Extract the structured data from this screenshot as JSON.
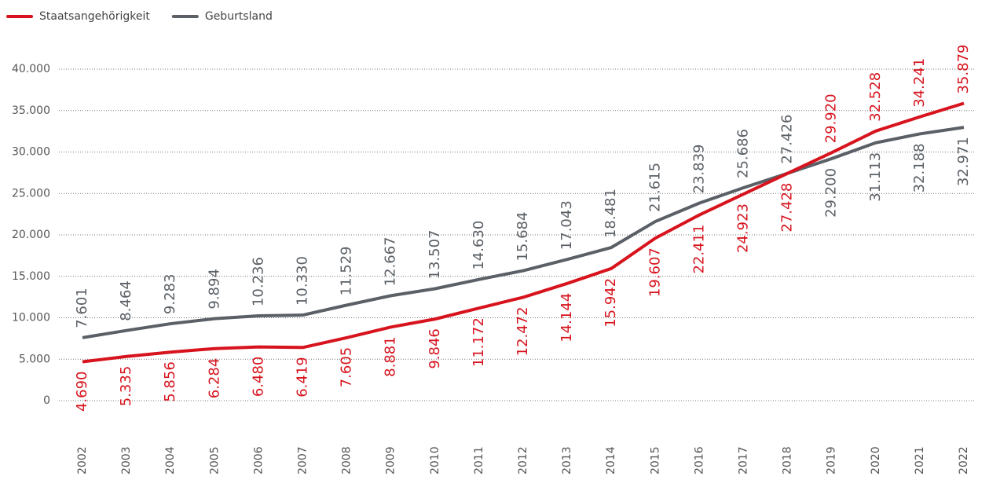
{
  "chart_data": {
    "type": "line",
    "categories": [
      "2002",
      "2003",
      "2004",
      "2005",
      "2006",
      "2007",
      "2008",
      "2009",
      "2010",
      "2011",
      "2012",
      "2013",
      "2014",
      "2015",
      "2016",
      "2017",
      "2018",
      "2019",
      "2020",
      "2021",
      "2022"
    ],
    "series": [
      {
        "name": "Staatsangehörigkeit",
        "color": "#d7141e",
        "values": [
          4690,
          5335,
          5856,
          6284,
          6480,
          6419,
          7605,
          8881,
          9846,
          11172,
          12472,
          14144,
          15942,
          19607,
          22411,
          24923,
          27428,
          29920,
          32528,
          34241,
          35879
        ],
        "value_labels": [
          "4.690",
          "5.335",
          "5.856",
          "6.284",
          "6.480",
          "6.419",
          "7.605",
          "8.881",
          "9.846",
          "11.172",
          "12.472",
          "14.144",
          "15.942",
          "19.607",
          "22.411",
          "24.923",
          "27.428",
          "29.920",
          "32.528",
          "34.241",
          "35.879"
        ]
      },
      {
        "name": "Geburtsland",
        "color": "#5a6066",
        "values": [
          7601,
          8464,
          9283,
          9894,
          10236,
          10330,
          11529,
          12667,
          13507,
          14630,
          15684,
          17043,
          18481,
          21615,
          23839,
          25686,
          27426,
          29200,
          31113,
          32188,
          32971
        ],
        "value_labels": [
          "7.601",
          "8.464",
          "9.283",
          "9.894",
          "10.236",
          "10.330",
          "11.529",
          "12.667",
          "13.507",
          "14.630",
          "15.684",
          "17.043",
          "18.481",
          "21.615",
          "23.839",
          "25.686",
          "27.426",
          "29.200",
          "31.113",
          "32.188",
          "32.971"
        ]
      }
    ],
    "ylim": [
      0,
      40000
    ],
    "yticks": [
      0,
      {
        "value": 5000,
        "label": "5.000"
      },
      {
        "value": 10000,
        "label": "10.000"
      },
      {
        "value": 15000,
        "label": "15.000"
      },
      {
        "value": 20000,
        "label": "20.000"
      },
      {
        "value": 25000,
        "label": "25.000"
      },
      {
        "value": 30000,
        "label": "30.000"
      },
      {
        "value": 35000,
        "label": "35.000"
      },
      {
        "value": 40000,
        "label": "40.000"
      }
    ],
    "grid": true
  }
}
